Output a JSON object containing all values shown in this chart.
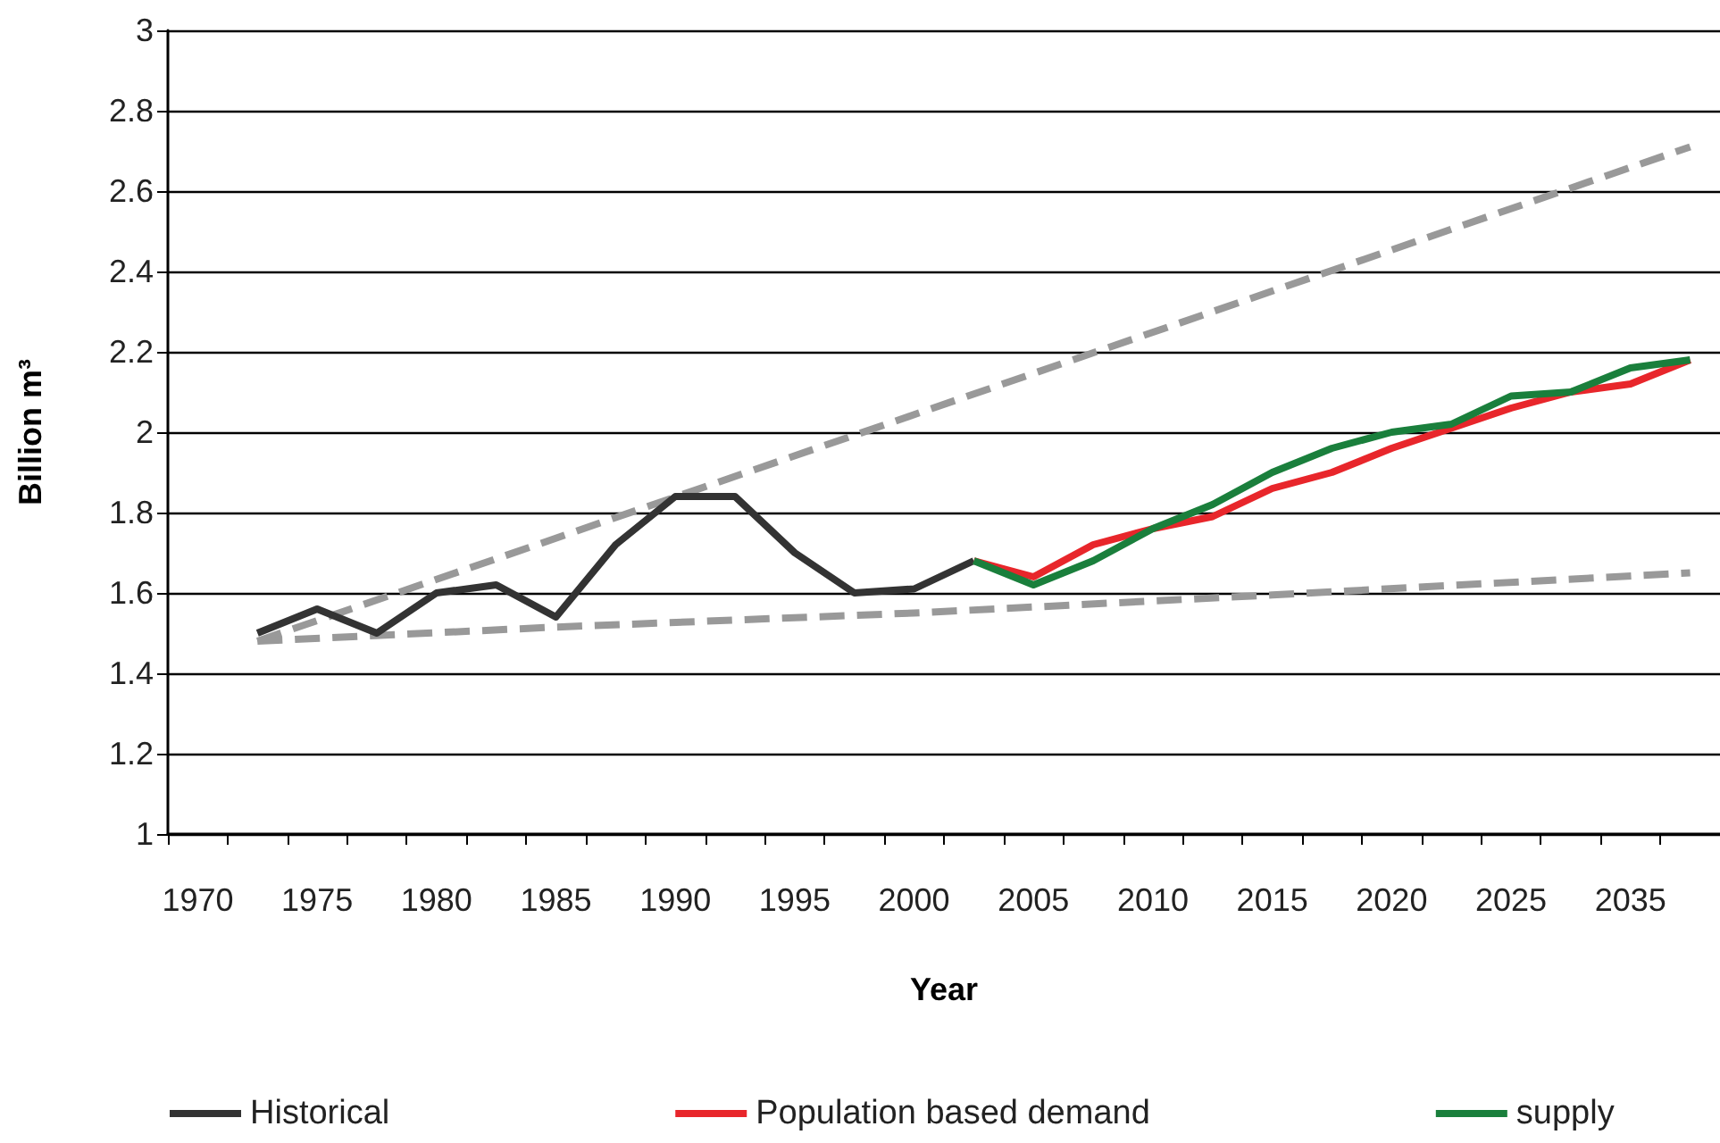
{
  "chart_data": {
    "type": "line",
    "xlabel": "Year",
    "ylabel": "Billion m³",
    "categories": [
      "1970",
      null,
      "1975",
      null,
      "1980",
      null,
      "1985",
      null,
      "1990",
      null,
      "1995",
      null,
      "2000",
      null,
      "2005",
      null,
      "2010",
      null,
      "2015",
      null,
      "2020",
      null,
      "2025",
      null,
      "2035",
      null
    ],
    "ylim": [
      1,
      3
    ],
    "yticks": [
      1,
      1.2,
      1.4,
      1.6,
      1.8,
      2,
      2.2,
      2.4,
      2.6,
      2.8,
      3
    ],
    "grid": "y",
    "legend": "bottom",
    "marker": "none",
    "series": [
      {
        "name": "Historical",
        "color": "#333333",
        "values": [
          null,
          1.5,
          1.56,
          1.5,
          1.6,
          1.62,
          1.54,
          1.72,
          1.84,
          1.84,
          1.7,
          1.6,
          1.61,
          1.68,
          null,
          null,
          null,
          null,
          null,
          null,
          null,
          null,
          null,
          null,
          null,
          null
        ]
      },
      {
        "name": "Population based demand",
        "color": "#e8262b",
        "values": [
          null,
          null,
          null,
          null,
          null,
          null,
          null,
          null,
          null,
          null,
          null,
          null,
          null,
          1.68,
          1.64,
          1.72,
          1.76,
          1.79,
          1.86,
          1.9,
          1.96,
          2.01,
          2.06,
          2.1,
          2.12,
          2.18
        ]
      },
      {
        "name": "supply",
        "color": "#1a7f3c",
        "values": [
          null,
          null,
          null,
          null,
          null,
          null,
          null,
          null,
          null,
          null,
          null,
          null,
          null,
          1.68,
          1.62,
          1.68,
          1.76,
          1.82,
          1.9,
          1.96,
          2.0,
          2.02,
          2.09,
          2.1,
          2.16,
          2.18
        ]
      },
      {
        "color": "#999999",
        "line_style": "dashed",
        "values": [
          null,
          1.48,
          null,
          null,
          null,
          null,
          null,
          null,
          null,
          null,
          null,
          null,
          null,
          null,
          null,
          null,
          null,
          null,
          null,
          null,
          null,
          null,
          null,
          null,
          null,
          2.71
        ]
      },
      {
        "color": "#999999",
        "line_style": "dashed",
        "values": [
          null,
          1.48,
          null,
          null,
          null,
          null,
          1.515,
          null,
          null,
          null,
          null,
          null,
          1.55,
          null,
          null,
          null,
          null,
          null,
          1.595,
          null,
          null,
          null,
          null,
          null,
          null,
          1.65
        ]
      }
    ]
  }
}
